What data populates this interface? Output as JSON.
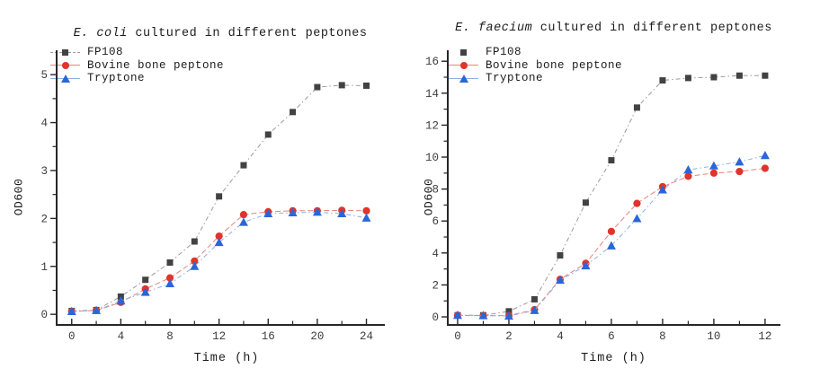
{
  "figure": {
    "background": "#ffffff",
    "axis_color": "#262626",
    "tick_label_color": "#3d3d3d"
  },
  "chart_data": [
    {
      "id": "ecoli",
      "type": "line",
      "title_em": "E. coli",
      "title_rest": " cultured in different peptones",
      "xlabel": "Time (h)",
      "ylabel": "OD600",
      "xlim": [
        -1.3,
        25.5
      ],
      "ylim": [
        -0.24,
        5.49
      ],
      "x_ticks_major": [
        0,
        4,
        8,
        12,
        16,
        20,
        24
      ],
      "x_ticks_minor": [
        2,
        6,
        10,
        14,
        18,
        22
      ],
      "y_ticks_major": [
        0,
        1,
        2,
        3,
        4,
        5
      ],
      "y_ticks_minor": [
        0.5,
        1.5,
        2.5,
        3.5,
        4.5
      ],
      "grid": false,
      "legend_position": "top-left",
      "x": [
        0,
        2,
        4,
        6,
        8,
        10,
        12,
        14,
        16,
        18,
        20,
        22,
        24
      ],
      "series": [
        {
          "name": "FP108",
          "marker": "square",
          "color": "#424242",
          "line_color": "#9b9b9b",
          "line_style": "dash-dot",
          "legend_line": "gray-dash",
          "values": [
            0.07,
            0.09,
            0.37,
            0.72,
            1.08,
            1.52,
            2.46,
            3.11,
            3.75,
            4.22,
            4.74,
            4.78,
            4.77
          ]
        },
        {
          "name": "Bovine bone peptone",
          "marker": "circle",
          "color": "#e0342c",
          "line_color": "#e4847d",
          "line_style": "dash",
          "legend_line": "red-solid",
          "values": [
            0.06,
            0.08,
            0.25,
            0.53,
            0.76,
            1.11,
            1.63,
            2.08,
            2.14,
            2.16,
            2.16,
            2.17,
            2.16
          ]
        },
        {
          "name": "Tryptone",
          "marker": "triangle",
          "color": "#2b66d8",
          "line_color": "#8fb0e4",
          "line_style": "dash-dot",
          "legend_line": "blue-solid",
          "values": [
            0.06,
            0.08,
            0.28,
            0.46,
            0.64,
            1.0,
            1.5,
            1.92,
            2.1,
            2.12,
            2.13,
            2.1,
            2.01
          ]
        }
      ]
    },
    {
      "id": "efaecium",
      "type": "line",
      "title_em": "E. faecium",
      "title_rest": " cultured in different peptones",
      "xlabel": "Time (h)",
      "ylabel": "OD600",
      "xlim": [
        -0.42,
        12.6
      ],
      "ylim": [
        -0.56,
        16.63
      ],
      "x_ticks_major": [
        0,
        2,
        4,
        6,
        8,
        10,
        12
      ],
      "x_ticks_minor": [
        1,
        3,
        5,
        7,
        9,
        11
      ],
      "y_ticks_major": [
        0,
        2,
        4,
        6,
        8,
        10,
        12,
        14,
        16
      ],
      "y_ticks_minor": [
        1,
        3,
        5,
        7,
        9,
        11,
        13,
        15
      ],
      "grid": false,
      "legend_position": "top-left",
      "x": [
        0,
        1,
        2,
        3,
        4,
        5,
        6,
        7,
        8,
        9,
        10,
        11,
        12
      ],
      "series": [
        {
          "name": "FP108",
          "marker": "square",
          "color": "#424242",
          "line_color": "#9b9b9b",
          "line_style": "dash-dot",
          "legend_line": "none",
          "values": [
            0.1,
            0.1,
            0.35,
            1.1,
            3.85,
            7.15,
            9.8,
            13.1,
            14.8,
            14.95,
            15.0,
            15.1,
            15.1
          ]
        },
        {
          "name": "Bovine bone peptone",
          "marker": "circle",
          "color": "#e0342c",
          "line_color": "#e4847d",
          "line_style": "dash",
          "legend_line": "red-solid",
          "values": [
            0.1,
            0.08,
            0.08,
            0.45,
            2.35,
            3.35,
            5.35,
            7.1,
            8.15,
            8.8,
            9.0,
            9.1,
            9.3
          ]
        },
        {
          "name": "Tryptone",
          "marker": "triangle",
          "color": "#2b66d8",
          "line_color": "#8fb0e4",
          "line_style": "dash-dot",
          "legend_line": "blue-solid",
          "values": [
            0.1,
            0.08,
            0.05,
            0.4,
            2.3,
            3.2,
            4.45,
            6.15,
            7.95,
            9.2,
            9.45,
            9.7,
            10.1
          ]
        }
      ]
    }
  ]
}
